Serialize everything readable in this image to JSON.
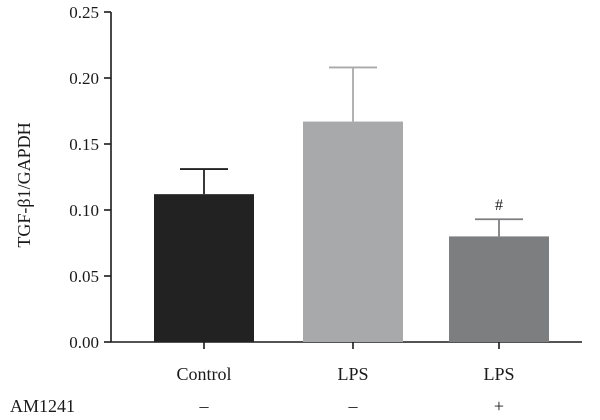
{
  "chart_data": {
    "type": "bar",
    "title": "",
    "xlabel": "",
    "ylabel": "TGF-β1/GAPDH",
    "ylim": [
      0,
      0.25
    ],
    "yticks": [
      "0.00",
      "0.05",
      "0.10",
      "0.15",
      "0.20",
      "0.25"
    ],
    "grid": false,
    "legend": "none",
    "categories": [
      "Control",
      "LPS",
      "LPS"
    ],
    "values": [
      0.112,
      0.167,
      0.08
    ],
    "errors": [
      0.019,
      0.041,
      0.013
    ],
    "colors": [
      "#222222",
      "#a8a9ab",
      "#7d7e80"
    ],
    "annotations": [
      "",
      "",
      "#"
    ],
    "treatment": {
      "label": "AM1241",
      "values": [
        "–",
        "–",
        "+"
      ]
    }
  }
}
